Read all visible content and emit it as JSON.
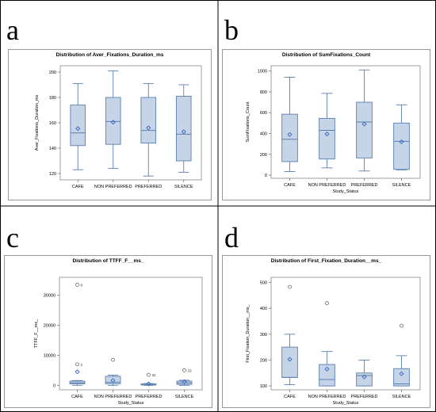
{
  "figure": {
    "colors": {
      "box_fill": "#c5d4e6",
      "box_stroke": "#5b7fb0",
      "mean_marker": "#3b63c4",
      "outlier": "#555555",
      "grid_line": "#000000"
    }
  },
  "panels": [
    {
      "letter": "a",
      "chart_data": {
        "type": "box",
        "title": "Distribution of Aver_Fixations_Duration_ms",
        "xlabel": "",
        "ylabel": "Aver_Fixations_Duration_ms",
        "categories": [
          "CAFE",
          "NON PREFERRED",
          "PREFERRED",
          "SILENCE"
        ],
        "ylim": [
          115,
          205
        ],
        "yticks": [
          120,
          140,
          160,
          180,
          200
        ],
        "boxes": [
          {
            "min": 123,
            "q1": 142,
            "median": 152,
            "q3": 174,
            "max": 191,
            "mean": 155.5,
            "outliers": []
          },
          {
            "min": 124,
            "q1": 143,
            "median": 161,
            "q3": 180,
            "max": 201,
            "mean": 160.5,
            "outliers": []
          },
          {
            "min": 118,
            "q1": 144,
            "median": 154,
            "q3": 180,
            "max": 191,
            "mean": 156,
            "outliers": []
          },
          {
            "min": 121,
            "q1": 130,
            "median": 151,
            "q3": 181,
            "max": 190,
            "mean": 153,
            "outliers": []
          }
        ]
      }
    },
    {
      "letter": "b",
      "chart_data": {
        "type": "box",
        "title": "Distribution of SumFixations_Count",
        "xlabel": "Study_Status",
        "ylabel": "SumFixations_Count",
        "categories": [
          "CAFE",
          "NON PREFERRED",
          "PREFERRED",
          "SILENCE"
        ],
        "ylim": [
          -30,
          1050
        ],
        "yticks": [
          0,
          200,
          400,
          600,
          800,
          1000
        ],
        "boxes": [
          {
            "min": 35,
            "q1": 130,
            "median": 345,
            "q3": 585,
            "max": 940,
            "mean": 390,
            "outliers": []
          },
          {
            "min": 70,
            "q1": 155,
            "median": 430,
            "q3": 545,
            "max": 785,
            "mean": 395,
            "outliers": []
          },
          {
            "min": 40,
            "q1": 165,
            "median": 510,
            "q3": 700,
            "max": 1010,
            "mean": 490,
            "outliers": []
          },
          {
            "min": 50,
            "q1": 55,
            "median": 325,
            "q3": 500,
            "max": 675,
            "mean": 320,
            "outliers": []
          }
        ]
      }
    },
    {
      "letter": "c",
      "chart_data": {
        "type": "box",
        "title": "Distribution of TTFF_F__ms_",
        "xlabel": "Study_Status",
        "ylabel": "TTFF_F__ms_",
        "categories": [
          "CAFE",
          "NON PREFERRED",
          "PREFERRED",
          "SILENCE"
        ],
        "ylim": [
          -1500,
          36000
        ],
        "yticks": [
          0,
          10000,
          20000,
          30000
        ],
        "boxes": [
          {
            "min": 0,
            "q1": 500,
            "median": 800,
            "q3": 1400,
            "max": 1600,
            "mean": 4500,
            "outliers": [
              {
                "value": 33500,
                "label": "8"
              },
              {
                "value": 7000,
                "label": "2"
              }
            ]
          },
          {
            "min": 0,
            "q1": 500,
            "median": 1000,
            "q3": 3000,
            "max": 3400,
            "mean": 1600,
            "outliers": [
              {
                "value": 8500,
                "label": ""
              }
            ]
          },
          {
            "min": 0,
            "q1": 100,
            "median": 200,
            "q3": 500,
            "max": 600,
            "mean": 500,
            "outliers": [
              {
                "value": 3500,
                "label": "32"
              }
            ]
          },
          {
            "min": 0,
            "q1": 300,
            "median": 800,
            "q3": 1400,
            "max": 1700,
            "mean": 1200,
            "outliers": [
              {
                "value": 5000,
                "label": "33"
              }
            ]
          }
        ]
      }
    },
    {
      "letter": "d",
      "chart_data": {
        "type": "box",
        "title": "Distribution of First_Fixation_Duration__ms_",
        "xlabel": "Study_Status",
        "ylabel": "First_Fixation_Duration__ms_",
        "categories": [
          "CAFE",
          "NON PREFERRED",
          "PREFERRED",
          "SILENCE"
        ],
        "ylim": [
          85,
          520
        ],
        "yticks": [
          100,
          200,
          300,
          400,
          500
        ],
        "boxes": [
          {
            "min": 105,
            "q1": 133,
            "median": 133,
            "q3": 250,
            "max": 300,
            "mean": 203,
            "outliers": [
              {
                "value": 483,
                "label": ""
              }
            ]
          },
          {
            "min": 100,
            "q1": 100,
            "median": 125,
            "q3": 183,
            "max": 233,
            "mean": 165,
            "outliers": [
              {
                "value": 420,
                "label": ""
              }
            ]
          },
          {
            "min": 100,
            "q1": 100,
            "median": 140,
            "q3": 150,
            "max": 200,
            "mean": 135,
            "outliers": []
          },
          {
            "min": 100,
            "q1": 100,
            "median": 108,
            "q3": 167,
            "max": 217,
            "mean": 147,
            "outliers": [
              {
                "value": 333,
                "label": ""
              }
            ]
          }
        ]
      }
    }
  ]
}
